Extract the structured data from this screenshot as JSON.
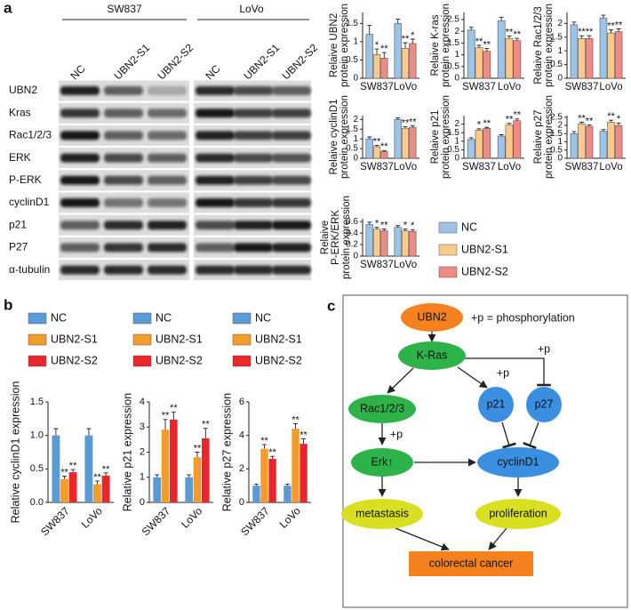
{
  "panels": [
    "a",
    "b",
    "c"
  ],
  "blot": {
    "groups": [
      "SW837",
      "LoVo"
    ],
    "lanes": [
      "NC",
      "UBN2-S1",
      "UBN2-S2",
      "NC",
      "UBN2-S1",
      "UBN2-S2"
    ],
    "rows": [
      "UBN2",
      "Kras",
      "Rac1/2/3",
      "ERK",
      "P-ERK",
      "cyclinD1",
      "p21",
      "P27",
      "α-tubulin"
    ]
  },
  "chart_data": [
    {
      "type": "bar",
      "ylabel": [
        "Relaive UBN2",
        "protein expression"
      ],
      "categories": [
        "SW837",
        "LoVo"
      ],
      "ylim": [
        0,
        1.8
      ],
      "yticks": [
        0,
        0.5,
        1,
        1.5
      ],
      "series": [
        {
          "color": "#9dc3e6",
          "values": [
            1.2,
            1.5
          ],
          "errors": [
            0.25,
            0.12
          ]
        },
        {
          "color": "#f8cb8c",
          "values": [
            0.65,
            0.82
          ],
          "errors": [
            0.15,
            0.15
          ],
          "significance": [
            "*",
            "**"
          ]
        },
        {
          "color": "#f08a84",
          "values": [
            0.55,
            0.95
          ],
          "errors": [
            0.15,
            0.12
          ],
          "significance": [
            "**",
            "*"
          ]
        }
      ]
    },
    {
      "type": "bar",
      "ylabel": [
        "Relaive K-ras",
        "protein expression"
      ],
      "categories": [
        "SW837",
        "LoVo"
      ],
      "ylim": [
        0,
        2.8
      ],
      "yticks": [
        0,
        0.5,
        1,
        1.5,
        2,
        2.5
      ],
      "series": [
        {
          "color": "#9dc3e6",
          "values": [
            2.05,
            2.45
          ],
          "errors": [
            0.12,
            0.15
          ]
        },
        {
          "color": "#f8cb8c",
          "values": [
            1.3,
            1.7
          ],
          "errors": [
            0.1,
            0.1
          ],
          "significance": [
            "**",
            "**"
          ]
        },
        {
          "color": "#f08a84",
          "values": [
            1.15,
            1.6
          ],
          "errors": [
            0.12,
            0.1
          ],
          "significance": [
            "**",
            "**"
          ]
        }
      ]
    },
    {
      "type": "bar",
      "ylabel": [
        "Relaive Rac1/2/3",
        "protein expression"
      ],
      "categories": [
        "SW837",
        "LoVo"
      ],
      "ylim": [
        0,
        2.4
      ],
      "yticks": [
        0,
        0.5,
        1,
        1.5,
        2
      ],
      "series": [
        {
          "color": "#9dc3e6",
          "values": [
            1.95,
            2.2
          ],
          "errors": [
            0.1,
            0.1
          ]
        },
        {
          "color": "#f8cb8c",
          "values": [
            1.45,
            1.65
          ],
          "errors": [
            0.1,
            0.12
          ],
          "significance": [
            "**",
            "**"
          ]
        },
        {
          "color": "#f08a84",
          "values": [
            1.45,
            1.7
          ],
          "errors": [
            0.1,
            0.1
          ],
          "significance": [
            "**",
            "**"
          ]
        }
      ]
    },
    {
      "type": "bar",
      "ylabel": [
        "Relaive cyclinD1",
        "protein expression"
      ],
      "categories": [
        "SW837",
        "LoVo"
      ],
      "ylim": [
        0,
        2.2
      ],
      "yticks": [
        0,
        0.5,
        1,
        1.5,
        2
      ],
      "series": [
        {
          "color": "#9dc3e6",
          "values": [
            1.0,
            2.0
          ],
          "errors": [
            0.1,
            0.08
          ]
        },
        {
          "color": "#f8cb8c",
          "values": [
            0.6,
            1.55
          ],
          "errors": [
            0.06,
            0.08
          ],
          "significance": [
            "**",
            "**"
          ]
        },
        {
          "color": "#f08a84",
          "values": [
            0.35,
            1.6
          ],
          "errors": [
            0.05,
            0.08
          ],
          "significance": [
            "**",
            "**"
          ]
        }
      ]
    },
    {
      "type": "bar",
      "ylabel": [
        "Relaive p21",
        "protein expression"
      ],
      "categories": [
        "SW837",
        "LoVo"
      ],
      "ylim": [
        0,
        2.5
      ],
      "yticks": [
        0,
        0.5,
        1,
        1.5,
        2
      ],
      "series": [
        {
          "color": "#9dc3e6",
          "values": [
            1.1,
            1.3
          ],
          "errors": [
            0.1,
            0.08
          ]
        },
        {
          "color": "#f8cb8c",
          "values": [
            1.65,
            1.95
          ],
          "errors": [
            0.08,
            0.1
          ],
          "significance": [
            "*",
            "**"
          ]
        },
        {
          "color": "#f08a84",
          "values": [
            1.75,
            2.2
          ],
          "errors": [
            0.06,
            0.1
          ],
          "significance": [
            "**",
            "**"
          ]
        }
      ]
    },
    {
      "type": "bar",
      "ylabel": [
        "Relaive p27",
        "protein expression"
      ],
      "categories": [
        "SW837",
        "LoVo"
      ],
      "ylim": [
        0,
        2.6
      ],
      "yticks": [
        0,
        0.5,
        1,
        1.5,
        2,
        2.5
      ],
      "series": [
        {
          "color": "#9dc3e6",
          "values": [
            1.5,
            1.65
          ],
          "errors": [
            0.12,
            0.1
          ]
        },
        {
          "color": "#f8cb8c",
          "values": [
            2.1,
            2.2
          ],
          "errors": [
            0.1,
            0.12
          ],
          "significance": [
            "**",
            "**"
          ]
        },
        {
          "color": "#f08a84",
          "values": [
            1.95,
            2.0
          ],
          "errors": [
            0.08,
            0.15
          ],
          "significance": [
            "**",
            "*"
          ]
        }
      ]
    },
    {
      "type": "bar",
      "ylabel": [
        "Relaive",
        "P-ERK/ERK",
        "protein expression"
      ],
      "categories": [
        "SW837",
        "LoVo"
      ],
      "ylim": [
        0,
        0.65
      ],
      "yticks": [
        0,
        0.2,
        0.4,
        0.6
      ],
      "series": [
        {
          "name": "NC",
          "color": "#9dc3e6",
          "values": [
            0.55,
            0.5
          ],
          "errors": [
            0.04,
            0.03
          ]
        },
        {
          "name": "UBN2-S1",
          "color": "#f8cb8c",
          "values": [
            0.47,
            0.44
          ],
          "errors": [
            0.03,
            0.03
          ],
          "significance": [
            "*",
            "*"
          ]
        },
        {
          "name": "UBN2-S2",
          "color": "#f08a84",
          "values": [
            0.44,
            0.43
          ],
          "errors": [
            0.03,
            0.03
          ],
          "significance": [
            "**",
            "*"
          ]
        }
      ]
    },
    {
      "type": "bar",
      "ylabel": "Relative cyclinD1 expression",
      "categories": [
        "SW837",
        "LoVo"
      ],
      "ylim": [
        0,
        1.5
      ],
      "yticks": [
        {
          "value": 0,
          "label": "0.0"
        },
        {
          "value": 0.5,
          "label": "0.5"
        },
        {
          "value": 1,
          "label": "1.0"
        },
        {
          "value": 1.5,
          "label": "1.5"
        }
      ],
      "series": [
        {
          "name": "NC",
          "color": "#5b9bd5",
          "values": [
            1.0,
            1.0
          ],
          "errors": [
            0.1,
            0.1
          ]
        },
        {
          "name": "UBN2-S1",
          "color": "#f39c2c",
          "values": [
            0.35,
            0.27
          ],
          "errors": [
            0.04,
            0.05
          ],
          "significance": [
            "**",
            "**"
          ]
        },
        {
          "name": "UBN2-S2",
          "color": "#e8262b",
          "values": [
            0.45,
            0.4
          ],
          "errors": [
            0.04,
            0.04
          ],
          "significance": [
            "**",
            "**"
          ]
        }
      ]
    },
    {
      "type": "bar",
      "ylabel": "Relative p21 expression",
      "categories": [
        "SW837",
        "LoVo"
      ],
      "ylim": [
        0,
        4
      ],
      "yticks": [
        0,
        1,
        2,
        3,
        4
      ],
      "series": [
        {
          "name": "NC",
          "color": "#5b9bd5",
          "values": [
            1.0,
            1.0
          ],
          "errors": [
            0.1,
            0.1
          ]
        },
        {
          "name": "UBN2-S1",
          "color": "#f39c2c",
          "values": [
            2.9,
            1.8
          ],
          "errors": [
            0.4,
            0.2
          ],
          "significance": [
            "**",
            "**"
          ]
        },
        {
          "name": "UBN2-S2",
          "color": "#e8262b",
          "values": [
            3.3,
            2.55
          ],
          "errors": [
            0.3,
            0.4
          ],
          "significance": [
            "**",
            "**"
          ]
        }
      ]
    },
    {
      "type": "bar",
      "ylabel": "Relative p27 expression",
      "categories": [
        "SW837",
        "LoVo"
      ],
      "ylim": [
        0,
        6
      ],
      "yticks": [
        0,
        2,
        4,
        6
      ],
      "series": [
        {
          "name": "NC",
          "color": "#5b9bd5",
          "values": [
            1.0,
            1.0
          ],
          "errors": [
            0.1,
            0.1
          ]
        },
        {
          "name": "UBN2-S1",
          "color": "#f39c2c",
          "values": [
            3.2,
            4.4
          ],
          "errors": [
            0.25,
            0.3
          ],
          "significance": [
            "**",
            "**"
          ]
        },
        {
          "name": "UBN2-S2",
          "color": "#e8262b",
          "values": [
            2.6,
            3.5
          ],
          "errors": [
            0.15,
            0.3
          ],
          "significance": [
            "**",
            "**"
          ]
        }
      ]
    }
  ],
  "diagram": {
    "legend": "+p =  phosphorylation",
    "nodes": [
      "UBN2",
      "K-Ras",
      "Rac1/2/3",
      "Erk↑",
      "p21",
      "p27",
      "cyclinD1",
      "metastasis",
      "proliferation",
      "colorectal cancer"
    ],
    "edge_labels": [
      "+p",
      "+p",
      "+p"
    ]
  }
}
